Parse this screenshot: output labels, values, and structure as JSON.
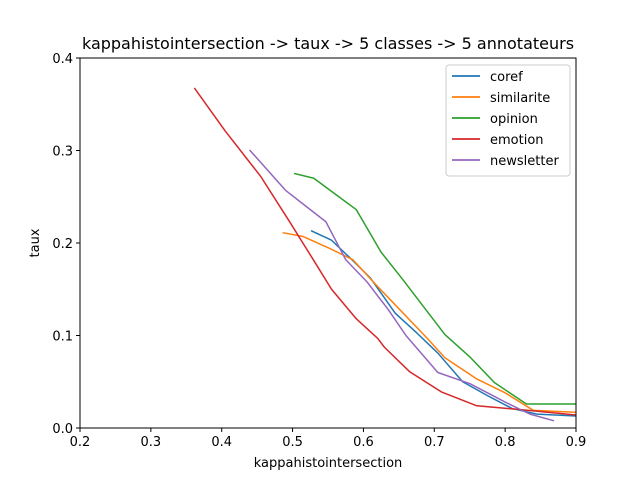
{
  "chart_data": {
    "type": "line",
    "title": "kappahistointersection -> taux -> 5 classes -> 5 annotateurs",
    "xlabel": "kappahistointersection",
    "ylabel": "taux",
    "xlim": [
      0.2,
      0.9
    ],
    "ylim": [
      0.0,
      0.4
    ],
    "xticks": [
      "0.2",
      "0.3",
      "0.4",
      "0.5",
      "0.6",
      "0.7",
      "0.8",
      "0.9"
    ],
    "yticks": [
      "0.0",
      "0.1",
      "0.2",
      "0.3",
      "0.4"
    ],
    "grid": false,
    "legend_position": "top-right",
    "series": [
      {
        "name": "coref",
        "color": "#1f77b4",
        "points": [
          [
            0.527,
            0.213
          ],
          [
            0.555,
            0.203
          ],
          [
            0.585,
            0.181
          ],
          [
            0.61,
            0.162
          ],
          [
            0.645,
            0.124
          ],
          [
            0.675,
            0.103
          ],
          [
            0.705,
            0.081
          ],
          [
            0.74,
            0.05
          ],
          [
            0.775,
            0.035
          ],
          [
            0.81,
            0.021
          ],
          [
            0.845,
            0.015
          ],
          [
            0.9,
            0.013
          ]
        ]
      },
      {
        "name": "similarite",
        "color": "#ff7f0e",
        "points": [
          [
            0.487,
            0.211
          ],
          [
            0.515,
            0.207
          ],
          [
            0.55,
            0.195
          ],
          [
            0.585,
            0.182
          ],
          [
            0.615,
            0.157
          ],
          [
            0.65,
            0.129
          ],
          [
            0.69,
            0.097
          ],
          [
            0.715,
            0.076
          ],
          [
            0.76,
            0.053
          ],
          [
            0.8,
            0.038
          ],
          [
            0.84,
            0.019
          ],
          [
            0.9,
            0.017
          ]
        ]
      },
      {
        "name": "opinion",
        "color": "#2ca02c",
        "points": [
          [
            0.503,
            0.275
          ],
          [
            0.53,
            0.27
          ],
          [
            0.56,
            0.253
          ],
          [
            0.59,
            0.236
          ],
          [
            0.625,
            0.19
          ],
          [
            0.655,
            0.161
          ],
          [
            0.685,
            0.131
          ],
          [
            0.715,
            0.101
          ],
          [
            0.75,
            0.077
          ],
          [
            0.785,
            0.049
          ],
          [
            0.83,
            0.026
          ],
          [
            0.9,
            0.026
          ]
        ]
      },
      {
        "name": "emotion",
        "color": "#d62728",
        "points": [
          [
            0.362,
            0.367
          ],
          [
            0.405,
            0.321
          ],
          [
            0.455,
            0.272
          ],
          [
            0.495,
            0.224
          ],
          [
            0.53,
            0.181
          ],
          [
            0.555,
            0.15
          ],
          [
            0.59,
            0.118
          ],
          [
            0.62,
            0.097
          ],
          [
            0.63,
            0.087
          ],
          [
            0.665,
            0.061
          ],
          [
            0.71,
            0.039
          ],
          [
            0.76,
            0.024
          ],
          [
            0.82,
            0.02
          ],
          [
            0.9,
            0.014
          ]
        ]
      },
      {
        "name": "newsletter",
        "color": "#9467bd",
        "points": [
          [
            0.44,
            0.3
          ],
          [
            0.49,
            0.257
          ],
          [
            0.515,
            0.242
          ],
          [
            0.547,
            0.223
          ],
          [
            0.575,
            0.182
          ],
          [
            0.605,
            0.158
          ],
          [
            0.635,
            0.128
          ],
          [
            0.66,
            0.1
          ],
          [
            0.705,
            0.06
          ],
          [
            0.75,
            0.048
          ],
          [
            0.8,
            0.028
          ],
          [
            0.835,
            0.015
          ],
          [
            0.868,
            0.008
          ]
        ]
      }
    ]
  }
}
